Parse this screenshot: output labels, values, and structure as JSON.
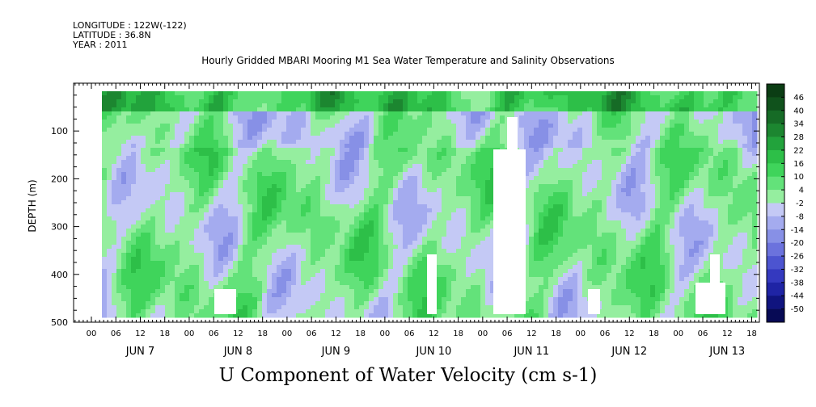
{
  "header": {
    "longitude": "LONGITUDE : 122W(-122)",
    "latitude": "LATITUDE : 36.8N",
    "year": "YEAR : 2011"
  },
  "chart_data": {
    "type": "heatmap",
    "title": "Hourly Gridded MBARI Mooring M1 Sea Water Temperature and Salinity Observations",
    "xlabel": "U Component of Water Velocity (cm s-1)",
    "ylabel": "DEPTH (m)",
    "x_hour_ticks": [
      "00",
      "06",
      "12",
      "18",
      "00",
      "06",
      "12",
      "18",
      "00",
      "06",
      "12",
      "18",
      "00",
      "06",
      "12",
      "18",
      "00",
      "06",
      "12",
      "18",
      "00",
      "06",
      "12",
      "18",
      "00",
      "06",
      "12",
      "18"
    ],
    "x_day_labels": [
      "JUN  7",
      "JUN  8",
      "JUN  9",
      "JUN 10",
      "JUN 11",
      "JUN 12",
      "JUN 13"
    ],
    "y_ticks": [
      100,
      200,
      300,
      400,
      500
    ],
    "ylim": [
      500,
      0
    ],
    "colorbar": {
      "labels": [
        "46",
        "40",
        "34",
        "28",
        "22",
        "16",
        "10",
        "4",
        "-2",
        "-8",
        "-14",
        "-20",
        "-26",
        "-32",
        "-38",
        "-44",
        "-50"
      ],
      "colors": [
        "#0b3d14",
        "#10521c",
        "#166b26",
        "#1c8630",
        "#22a33c",
        "#2dbf48",
        "#3fd45b",
        "#63e27a",
        "#95ee9f",
        "#c4c9f5",
        "#a4abef",
        "#8790e6",
        "#6b72dd",
        "#4c54d0",
        "#3439bf",
        "#1f24a5",
        "#10147f",
        "#070a55"
      ]
    }
  }
}
